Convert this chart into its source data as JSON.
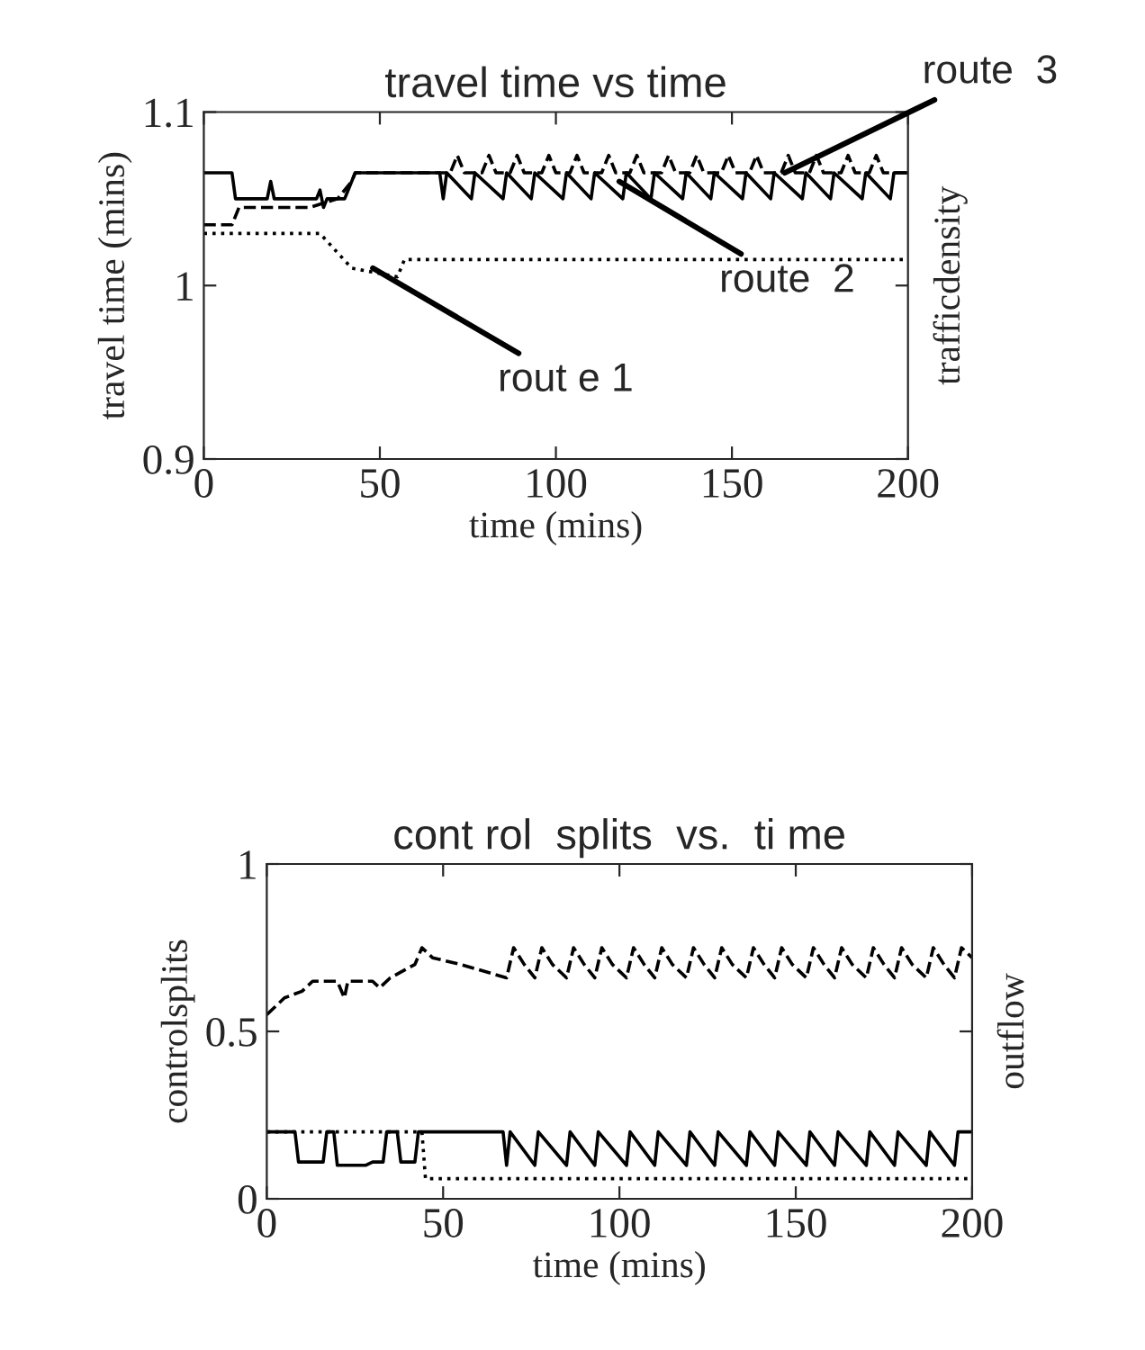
{
  "chart_data": [
    {
      "type": "line",
      "title": "travel time vs time",
      "xlabel": "time (mins)",
      "ylabel": "travel time (mins)",
      "y2label": "trafficdensity",
      "xlim": [
        0,
        200
      ],
      "xticks": [
        0,
        50,
        100,
        150,
        200
      ],
      "ylim": [
        0.9,
        1.1
      ],
      "yticks": [
        {
          "value": 0.9,
          "label": "0.9"
        },
        {
          "value": 1,
          "label": "1"
        },
        {
          "value": 1.1,
          "label": "1.1"
        }
      ],
      "grid": false,
      "legend": false,
      "annotations": [
        {
          "text": "rout e 1",
          "x": 48,
          "y": 1.01
        },
        {
          "text": "route  2",
          "x": 118,
          "y": 1.06
        },
        {
          "text": "route  3",
          "x": 165,
          "y": 1.065
        }
      ],
      "series": [
        {
          "color": "#000000",
          "line_style": "dotted",
          "x": [
            0,
            33,
            42,
            55,
            57,
            200
          ],
          "values": [
            1.03,
            1.03,
            1.01,
            1.005,
            1.015,
            1.015
          ]
        },
        {
          "color": "#000000",
          "line_style": "solid",
          "x": [
            0,
            8,
            9,
            18,
            19,
            20,
            32,
            33,
            34,
            35,
            40,
            43,
            67,
            68,
            69,
            76,
            77,
            85,
            86,
            93,
            94,
            102,
            103,
            110,
            111,
            119,
            120,
            127,
            128,
            136,
            137,
            144,
            145,
            153,
            154,
            161,
            162,
            170,
            171,
            178,
            179,
            187,
            188,
            195,
            196,
            200
          ],
          "values": [
            1.065,
            1.065,
            1.05,
            1.05,
            1.06,
            1.05,
            1.05,
            1.055,
            1.045,
            1.05,
            1.05,
            1.065,
            1.065,
            1.05,
            1.065,
            1.05,
            1.065,
            1.05,
            1.065,
            1.05,
            1.065,
            1.05,
            1.065,
            1.05,
            1.065,
            1.05,
            1.065,
            1.05,
            1.065,
            1.05,
            1.065,
            1.05,
            1.065,
            1.05,
            1.065,
            1.05,
            1.065,
            1.05,
            1.065,
            1.05,
            1.065,
            1.05,
            1.065,
            1.05,
            1.065,
            1.065
          ]
        },
        {
          "color": "#000000",
          "line_style": "dashed",
          "x": [
            0,
            8,
            10,
            30,
            38,
            42,
            43,
            70,
            72,
            74,
            79,
            81,
            83,
            87,
            89,
            91,
            96,
            98,
            100,
            104,
            106,
            108,
            113,
            115,
            117,
            121,
            123,
            125,
            130,
            132,
            134,
            138,
            140,
            142,
            147,
            149,
            151,
            155,
            157,
            159,
            164,
            166,
            168,
            172,
            174,
            176,
            181,
            183,
            185,
            189,
            191,
            193,
            198,
            200
          ],
          "values": [
            1.035,
            1.035,
            1.045,
            1.045,
            1.05,
            1.06,
            1.065,
            1.065,
            1.075,
            1.065,
            1.065,
            1.075,
            1.065,
            1.065,
            1.075,
            1.065,
            1.065,
            1.075,
            1.065,
            1.065,
            1.075,
            1.065,
            1.065,
            1.075,
            1.065,
            1.065,
            1.075,
            1.065,
            1.065,
            1.075,
            1.065,
            1.065,
            1.075,
            1.065,
            1.065,
            1.075,
            1.065,
            1.065,
            1.075,
            1.065,
            1.065,
            1.075,
            1.065,
            1.065,
            1.075,
            1.065,
            1.065,
            1.075,
            1.065,
            1.065,
            1.075,
            1.065,
            1.065,
            1.065
          ]
        }
      ]
    },
    {
      "type": "line",
      "title": "cont rol  splits  vs.  ti me",
      "xlabel": "time (mins)",
      "ylabel": "controlsplits",
      "y2label": "outflow",
      "xlim": [
        0,
        200
      ],
      "xticks": [
        0,
        50,
        100,
        150,
        200
      ],
      "ylim": [
        0,
        1
      ],
      "yticks": [
        0,
        {
          "value": 0.5,
          "label": "0.5"
        },
        1
      ],
      "grid": false,
      "legend": false,
      "series": [
        {
          "color": "#000000",
          "line_style": "dotted",
          "x": [
            0,
            44,
            45,
            200
          ],
          "values": [
            0.2,
            0.2,
            0.06,
            0.06
          ]
        },
        {
          "color": "#000000",
          "line_style": "solid",
          "x": [
            0,
            8,
            9,
            16,
            17,
            19,
            20,
            28,
            30,
            33,
            34,
            37,
            38,
            42,
            43,
            67,
            68,
            69,
            76,
            77,
            85,
            86,
            93,
            94,
            102,
            103,
            110,
            111,
            119,
            120,
            127,
            128,
            136,
            137,
            144,
            145,
            153,
            154,
            161,
            162,
            170,
            171,
            178,
            179,
            187,
            188,
            195,
            196,
            200
          ],
          "values": [
            0.2,
            0.2,
            0.11,
            0.11,
            0.2,
            0.2,
            0.1,
            0.1,
            0.11,
            0.11,
            0.2,
            0.2,
            0.11,
            0.11,
            0.2,
            0.2,
            0.1,
            0.2,
            0.1,
            0.2,
            0.1,
            0.2,
            0.1,
            0.2,
            0.1,
            0.2,
            0.1,
            0.2,
            0.1,
            0.2,
            0.1,
            0.2,
            0.1,
            0.2,
            0.1,
            0.2,
            0.1,
            0.2,
            0.1,
            0.2,
            0.1,
            0.2,
            0.1,
            0.2,
            0.1,
            0.2,
            0.1,
            0.2,
            0.2
          ]
        },
        {
          "color": "#000000",
          "line_style": "dashed",
          "x": [
            0,
            5,
            10,
            13,
            20,
            22,
            23,
            30,
            32,
            35,
            42,
            44,
            47,
            55,
            68,
            70,
            73,
            76,
            78,
            81,
            85,
            87,
            90,
            93,
            95,
            98,
            102,
            104,
            107,
            110,
            112,
            115,
            119,
            121,
            124,
            127,
            129,
            132,
            136,
            138,
            141,
            144,
            146,
            149,
            153,
            155,
            158,
            161,
            163,
            166,
            170,
            172,
            175,
            178,
            180,
            183,
            187,
            189,
            192,
            195,
            197,
            200
          ],
          "values": [
            0.55,
            0.6,
            0.62,
            0.65,
            0.65,
            0.6,
            0.65,
            0.65,
            0.63,
            0.66,
            0.7,
            0.75,
            0.72,
            0.7,
            0.66,
            0.75,
            0.7,
            0.66,
            0.75,
            0.7,
            0.66,
            0.75,
            0.7,
            0.66,
            0.75,
            0.7,
            0.66,
            0.75,
            0.7,
            0.66,
            0.75,
            0.7,
            0.66,
            0.75,
            0.7,
            0.66,
            0.75,
            0.7,
            0.66,
            0.75,
            0.7,
            0.66,
            0.75,
            0.7,
            0.66,
            0.75,
            0.7,
            0.66,
            0.75,
            0.7,
            0.66,
            0.75,
            0.7,
            0.66,
            0.75,
            0.7,
            0.66,
            0.75,
            0.7,
            0.66,
            0.75,
            0.72
          ]
        }
      ]
    }
  ]
}
